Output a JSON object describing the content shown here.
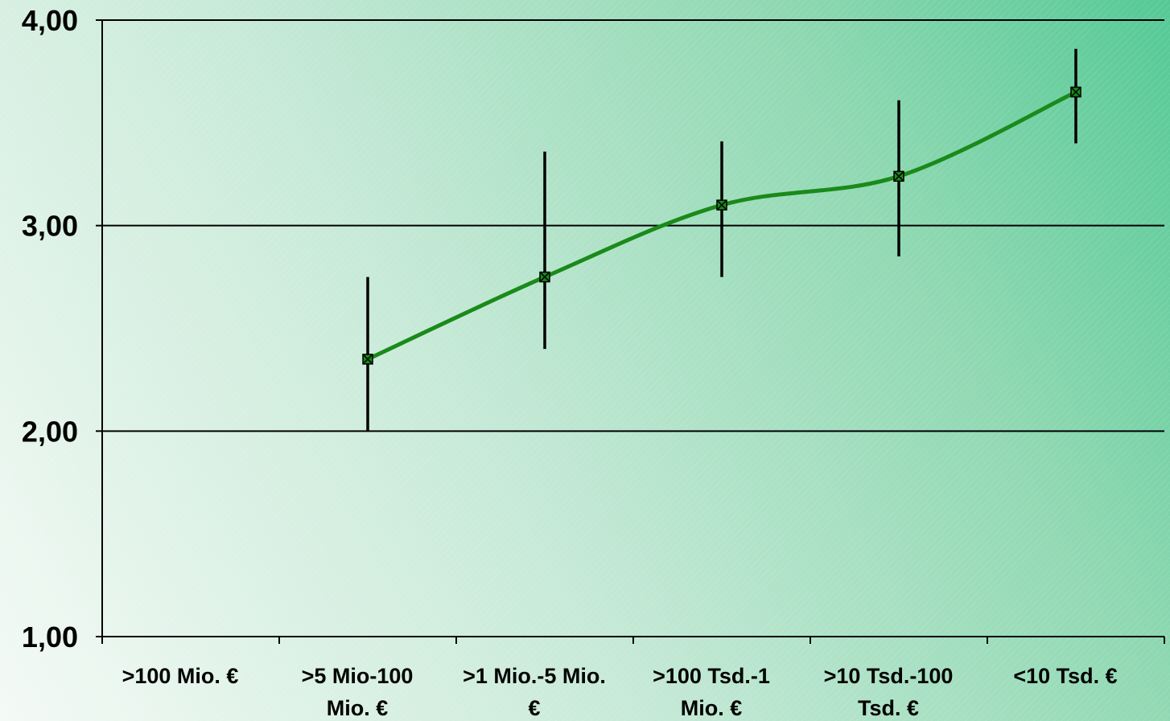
{
  "chart_data": {
    "type": "line",
    "categories": [
      ">100 Mio. €",
      ">5 Mio-100 Mio. €",
      ">1 Mio.-5 Mio. €",
      ">100 Tsd.-1 Mio. €",
      ">10 Tsd.-100 Tsd. €",
      "<10 Tsd. €"
    ],
    "category_lines": [
      [
        ">100 Mio. €"
      ],
      [
        ">5 Mio-100",
        "Mio. €"
      ],
      [
        ">1 Mio.-5 Mio.",
        "€"
      ],
      [
        ">100 Tsd.-1",
        "Mio. €"
      ],
      [
        ">10 Tsd.-100",
        "Tsd. €"
      ],
      [
        "<10 Tsd. €"
      ]
    ],
    "series": [
      {
        "values": [
          null,
          2.35,
          2.75,
          3.1,
          3.24,
          3.65
        ],
        "error_low": [
          null,
          2.0,
          2.4,
          2.75,
          2.85,
          3.4
        ],
        "error_high": [
          null,
          2.75,
          3.36,
          3.41,
          3.61,
          3.86
        ],
        "color": "#1a8a1a",
        "marker": "square-x",
        "smooth": true
      }
    ],
    "ylim": [
      1.0,
      4.0
    ],
    "yticks": [
      "1,00",
      "2,00",
      "3,00",
      "4,00"
    ],
    "ytick_values": [
      1,
      2,
      3,
      4
    ],
    "grid": true,
    "background": "green-gradient",
    "title": "",
    "xlabel": "",
    "ylabel": ""
  }
}
